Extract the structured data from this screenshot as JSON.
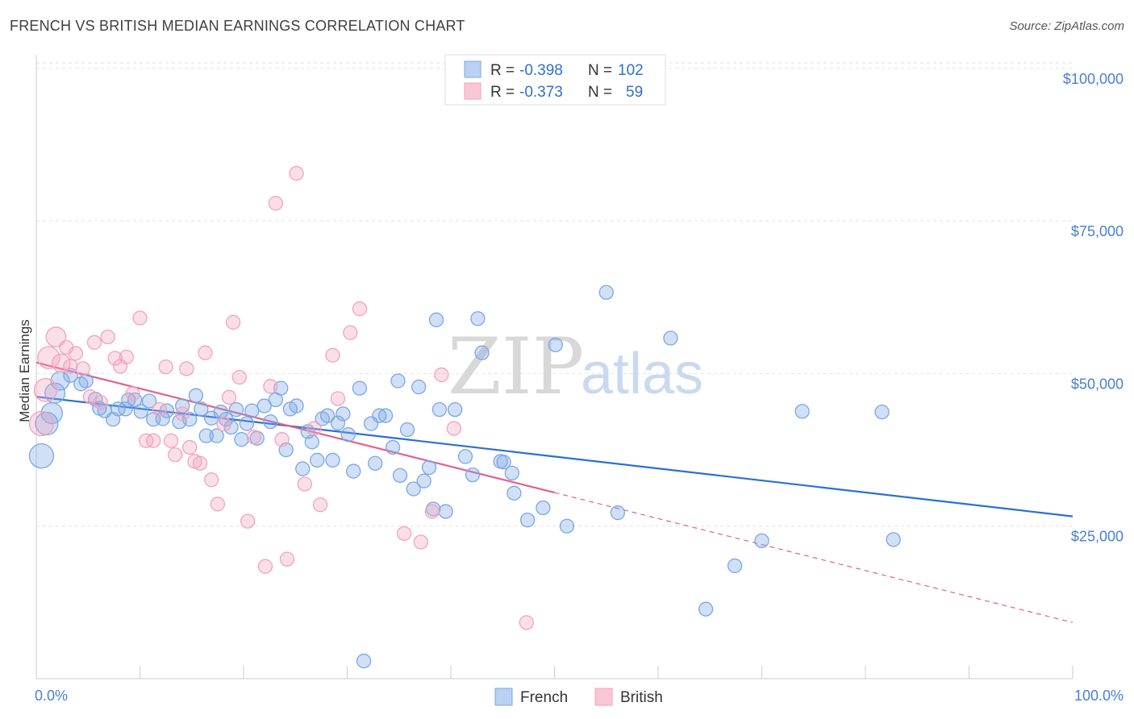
{
  "title": "FRENCH VS BRITISH MEDIAN EARNINGS CORRELATION CHART",
  "source": "Source: ZipAtlas.com",
  "watermark": {
    "zip": "ZIP",
    "atlas": "atlas"
  },
  "colors": {
    "french": "#7aa7e6",
    "french_line": "#2a6fd4",
    "british": "#f2a3bd",
    "british_line": "#e2608b"
  },
  "chart_data": {
    "type": "scatter",
    "xlabel": "",
    "ylabel": "Median Earnings",
    "xlim": [
      0,
      100
    ],
    "ylim": [
      0,
      105000
    ],
    "x_tick_labels": [
      {
        "value": 0,
        "label": "0.0%"
      },
      {
        "value": 100,
        "label": "100.0%"
      }
    ],
    "y_ticks": [
      {
        "value": 25000,
        "label": "$25,000"
      },
      {
        "value": 50000,
        "label": "$50,000"
      },
      {
        "value": 75000,
        "label": "$75,000"
      },
      {
        "value": 100000,
        "label": "$100,000"
      }
    ],
    "legend": [
      {
        "name": "French",
        "r_label": "R =",
        "r": "-0.398",
        "n_label": "N =",
        "n": "102"
      },
      {
        "name": "British",
        "r_label": "R =",
        "r": "-0.373",
        "n_label": "N =",
        "n": "59"
      }
    ],
    "series": [
      {
        "name": "French",
        "trend": {
          "x0": 0,
          "y0": 46200,
          "x1": 100,
          "y1": 26600,
          "solid_until": 100
        },
        "points": [
          [
            0.5,
            36500
          ],
          [
            1.0,
            41800
          ],
          [
            1.5,
            43500
          ],
          [
            1.8,
            46800
          ],
          [
            2.3,
            48800
          ],
          [
            3.3,
            49700
          ],
          [
            4.3,
            48300
          ],
          [
            4.8,
            48800
          ],
          [
            5.7,
            45800
          ],
          [
            6.1,
            44300
          ],
          [
            6.6,
            43900
          ],
          [
            7.4,
            42500
          ],
          [
            7.9,
            44200
          ],
          [
            8.6,
            44200
          ],
          [
            8.9,
            45700
          ],
          [
            9.5,
            45700
          ],
          [
            10.1,
            43800
          ],
          [
            10.9,
            45500
          ],
          [
            11.3,
            42500
          ],
          [
            12.2,
            42600
          ],
          [
            12.6,
            43900
          ],
          [
            13.8,
            42100
          ],
          [
            14.1,
            44700
          ],
          [
            14.8,
            42500
          ],
          [
            15.4,
            46400
          ],
          [
            15.9,
            44200
          ],
          [
            16.4,
            39800
          ],
          [
            16.9,
            42700
          ],
          [
            17.4,
            39800
          ],
          [
            17.8,
            43700
          ],
          [
            18.3,
            42500
          ],
          [
            18.8,
            41200
          ],
          [
            19.3,
            44100
          ],
          [
            19.8,
            39200
          ],
          [
            20.3,
            41800
          ],
          [
            20.8,
            43900
          ],
          [
            21.3,
            39400
          ],
          [
            22.0,
            44700
          ],
          [
            22.6,
            42100
          ],
          [
            23.1,
            45700
          ],
          [
            23.6,
            47600
          ],
          [
            24.1,
            37500
          ],
          [
            24.5,
            44200
          ],
          [
            25.1,
            44700
          ],
          [
            25.7,
            34400
          ],
          [
            26.2,
            40500
          ],
          [
            26.6,
            38800
          ],
          [
            27.1,
            35800
          ],
          [
            27.6,
            42600
          ],
          [
            28.1,
            43100
          ],
          [
            28.6,
            35800
          ],
          [
            29.1,
            41900
          ],
          [
            29.6,
            43400
          ],
          [
            30.1,
            40000
          ],
          [
            30.6,
            34000
          ],
          [
            31.2,
            47600
          ],
          [
            31.6,
            2900
          ],
          [
            32.3,
            41800
          ],
          [
            32.7,
            35300
          ],
          [
            33.1,
            43100
          ],
          [
            33.7,
            43100
          ],
          [
            34.4,
            37900
          ],
          [
            34.9,
            48800
          ],
          [
            35.1,
            33300
          ],
          [
            35.8,
            40800
          ],
          [
            36.4,
            31100
          ],
          [
            36.9,
            47800
          ],
          [
            37.4,
            32400
          ],
          [
            37.9,
            34600
          ],
          [
            38.3,
            27800
          ],
          [
            38.6,
            58800
          ],
          [
            38.9,
            44100
          ],
          [
            39.5,
            27400
          ],
          [
            40.4,
            44100
          ],
          [
            41.4,
            36400
          ],
          [
            42.1,
            33400
          ],
          [
            42.6,
            59000
          ],
          [
            43.0,
            53400
          ],
          [
            44.8,
            35600
          ],
          [
            45.1,
            35500
          ],
          [
            45.9,
            33700
          ],
          [
            46.1,
            30400
          ],
          [
            47.4,
            26000
          ],
          [
            48.9,
            28000
          ],
          [
            50.1,
            54700
          ],
          [
            51.2,
            25000
          ],
          [
            55.0,
            63300
          ],
          [
            56.1,
            27200
          ],
          [
            61.2,
            55800
          ],
          [
            64.6,
            11400
          ],
          [
            67.4,
            18500
          ],
          [
            70.0,
            22600
          ],
          [
            73.9,
            43800
          ],
          [
            81.6,
            43700
          ],
          [
            82.7,
            22800
          ]
        ]
      },
      {
        "name": "British",
        "trend": {
          "x0": 0,
          "y0": 51800,
          "x1": 100,
          "y1": 9200,
          "solid_until": 50
        },
        "points": [
          [
            0.5,
            41800
          ],
          [
            0.9,
            47300
          ],
          [
            1.2,
            52600
          ],
          [
            1.9,
            56000
          ],
          [
            2.4,
            51700
          ],
          [
            2.9,
            54300
          ],
          [
            3.3,
            51200
          ],
          [
            3.8,
            53300
          ],
          [
            4.5,
            50800
          ],
          [
            5.2,
            46200
          ],
          [
            5.6,
            55100
          ],
          [
            6.2,
            45300
          ],
          [
            6.9,
            56000
          ],
          [
            7.6,
            52500
          ],
          [
            8.1,
            51200
          ],
          [
            8.7,
            52700
          ],
          [
            9.3,
            46700
          ],
          [
            10.0,
            59100
          ],
          [
            10.6,
            39000
          ],
          [
            11.3,
            39000
          ],
          [
            11.9,
            44100
          ],
          [
            12.5,
            51100
          ],
          [
            13.0,
            39000
          ],
          [
            13.4,
            36700
          ],
          [
            14.1,
            43400
          ],
          [
            14.5,
            50800
          ],
          [
            14.8,
            37900
          ],
          [
            15.3,
            35600
          ],
          [
            15.8,
            35300
          ],
          [
            16.3,
            53400
          ],
          [
            16.9,
            32600
          ],
          [
            17.5,
            28600
          ],
          [
            18.1,
            41700
          ],
          [
            18.6,
            46100
          ],
          [
            19.0,
            58400
          ],
          [
            19.6,
            49400
          ],
          [
            20.4,
            25800
          ],
          [
            21.0,
            39600
          ],
          [
            22.1,
            18400
          ],
          [
            22.6,
            47900
          ],
          [
            23.1,
            77900
          ],
          [
            23.7,
            39200
          ],
          [
            24.2,
            19600
          ],
          [
            25.1,
            82800
          ],
          [
            25.9,
            31900
          ],
          [
            26.8,
            41000
          ],
          [
            27.4,
            28500
          ],
          [
            28.6,
            53000
          ],
          [
            29.1,
            45900
          ],
          [
            30.3,
            56700
          ],
          [
            31.2,
            60600
          ],
          [
            35.5,
            23800
          ],
          [
            37.1,
            22400
          ],
          [
            38.2,
            27400
          ],
          [
            39.1,
            49800
          ],
          [
            40.3,
            41000
          ],
          [
            47.3,
            9200
          ]
        ]
      }
    ]
  }
}
